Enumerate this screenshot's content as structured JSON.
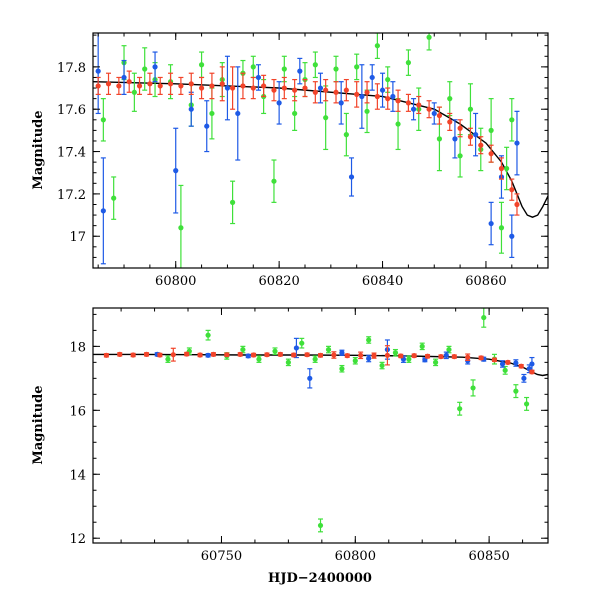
{
  "colors": {
    "series_blue": "#1e5ae6",
    "series_green": "#3fe03a",
    "series_red": "#f2442a",
    "model": "#000000"
  },
  "chart_data": [
    {
      "type": "scatter",
      "panel": "top",
      "title": "",
      "xlabel": "",
      "ylabel": "Magnitude",
      "xlim": [
        60784,
        60872
      ],
      "ylim": [
        17.96,
        16.85
      ],
      "y_inverted": true,
      "xticks": [
        60800,
        60820,
        60840,
        60860
      ],
      "yticks": [
        17,
        17.2,
        17.4,
        17.6,
        17.8
      ],
      "xtick_labels": [
        "60800",
        "60820",
        "60840",
        "60860"
      ],
      "ytick_labels": [
        "17",
        "17.2",
        "17.4",
        "17.6",
        "17.8"
      ],
      "model_curve": {
        "x": [
          60784,
          60800,
          60820,
          60840,
          60850,
          60855,
          60860,
          60863,
          60865,
          60866,
          60867,
          60868,
          60869,
          60870,
          60871,
          60872
        ],
        "y": [
          17.73,
          17.72,
          17.7,
          17.66,
          17.6,
          17.53,
          17.44,
          17.35,
          17.26,
          17.2,
          17.14,
          17.1,
          17.09,
          17.1,
          17.14,
          17.19
        ]
      },
      "series": [
        {
          "color": "#f2442a",
          "x": [
            60785,
            60787,
            60789,
            60791,
            60793,
            60795,
            60797,
            60799,
            60801,
            60803,
            60805,
            60807,
            60809,
            60811,
            60813,
            60815,
            60817,
            60819,
            60821,
            60823,
            60825,
            60827,
            60829,
            60831,
            60833,
            60835,
            60837,
            60839,
            60841,
            60843,
            60845,
            60847,
            60849,
            60851,
            60853,
            60855,
            60857,
            60859,
            60861,
            60863,
            60865,
            60866
          ],
          "y": [
            17.71,
            17.72,
            17.71,
            17.73,
            17.71,
            17.72,
            17.71,
            17.72,
            17.71,
            17.72,
            17.7,
            17.71,
            17.72,
            17.7,
            17.71,
            17.7,
            17.71,
            17.69,
            17.7,
            17.69,
            17.7,
            17.68,
            17.69,
            17.68,
            17.69,
            17.67,
            17.68,
            17.66,
            17.65,
            17.64,
            17.63,
            17.62,
            17.6,
            17.57,
            17.54,
            17.51,
            17.47,
            17.43,
            17.39,
            17.32,
            17.22,
            17.15
          ],
          "err": [
            0.04,
            0.05,
            0.04,
            0.05,
            0.04,
            0.05,
            0.04,
            0.05,
            0.04,
            0.05,
            0.05,
            0.06,
            0.08,
            0.1,
            0.06,
            0.05,
            0.05,
            0.05,
            0.05,
            0.05,
            0.04,
            0.05,
            0.05,
            0.05,
            0.05,
            0.06,
            0.05,
            0.06,
            0.05,
            0.05,
            0.04,
            0.04,
            0.04,
            0.04,
            0.04,
            0.04,
            0.04,
            0.04,
            0.04,
            0.05,
            0.05,
            0.05
          ]
        },
        {
          "color": "#1e5ae6",
          "x": [
            60785,
            60786,
            60790,
            60796,
            60800,
            60803,
            60806,
            60810,
            60812,
            60816,
            60820,
            60824,
            60828,
            60832,
            60834,
            60836,
            60838,
            60840,
            60842,
            60846,
            60850,
            60854,
            60858,
            60861,
            60863,
            60865,
            60866
          ],
          "y": [
            17.78,
            17.12,
            17.75,
            17.8,
            17.31,
            17.6,
            17.52,
            17.7,
            17.58,
            17.75,
            17.63,
            17.78,
            17.7,
            17.63,
            17.28,
            17.66,
            17.75,
            17.69,
            17.66,
            17.6,
            17.58,
            17.46,
            17.48,
            17.06,
            17.28,
            17.0,
            17.44
          ],
          "err": [
            0.2,
            0.25,
            0.08,
            0.07,
            0.2,
            0.08,
            0.12,
            0.15,
            0.22,
            0.06,
            0.1,
            0.06,
            0.07,
            0.1,
            0.09,
            0.15,
            0.06,
            0.08,
            0.07,
            0.05,
            0.05,
            0.09,
            0.1,
            0.1,
            0.1,
            0.1,
            0.15
          ]
        },
        {
          "color": "#3fe03a",
          "x": [
            60786,
            60788,
            60790,
            60792,
            60794,
            60796,
            60799,
            60801,
            60803,
            60805,
            60807,
            60809,
            60811,
            60813,
            60815,
            60817,
            60819,
            60821,
            60823,
            60825,
            60827,
            60829,
            60831,
            60833,
            60835,
            60837,
            60839,
            60841,
            60843,
            60845,
            60847,
            60849,
            60851,
            60853,
            60855,
            60857,
            60859,
            60861,
            60863,
            60864,
            60865
          ],
          "y": [
            17.55,
            17.18,
            17.82,
            17.68,
            17.79,
            17.74,
            17.73,
            17.04,
            17.62,
            17.81,
            17.58,
            17.74,
            17.16,
            17.77,
            17.8,
            17.66,
            17.26,
            17.79,
            17.58,
            17.74,
            17.81,
            17.56,
            17.79,
            17.48,
            17.8,
            17.59,
            17.9,
            17.74,
            17.53,
            17.82,
            17.6,
            17.94,
            17.46,
            17.65,
            17.38,
            17.6,
            17.41,
            17.5,
            17.04,
            17.32,
            17.55
          ],
          "err": [
            0.1,
            0.1,
            0.08,
            0.09,
            0.1,
            0.08,
            0.08,
            0.2,
            0.1,
            0.06,
            0.12,
            0.08,
            0.1,
            0.06,
            0.05,
            0.08,
            0.1,
            0.06,
            0.08,
            0.08,
            0.06,
            0.15,
            0.06,
            0.1,
            0.06,
            0.1,
            0.06,
            0.06,
            0.12,
            0.06,
            0.1,
            0.06,
            0.15,
            0.08,
            0.1,
            0.12,
            0.1,
            0.15,
            0.12,
            0.1,
            0.1
          ]
        }
      ]
    },
    {
      "type": "scatter",
      "panel": "bottom",
      "title": "",
      "xlabel": "HJD−2400000",
      "ylabel": "Magnitude",
      "xlim": [
        60702,
        60872
      ],
      "ylim": [
        19.2,
        11.85
      ],
      "y_inverted": true,
      "xticks": [
        60750,
        60800,
        60850
      ],
      "yticks": [
        12,
        14,
        16,
        18
      ],
      "xtick_labels": [
        "60750",
        "60800",
        "60850"
      ],
      "ytick_labels": [
        "12",
        "14",
        "16",
        "18"
      ],
      "model_curve": {
        "x": [
          60702,
          60720,
          60740,
          60760,
          60780,
          60800,
          60820,
          60840,
          60850,
          60858,
          60863,
          60866,
          60868,
          60870,
          60872
        ],
        "y": [
          17.75,
          17.75,
          17.74,
          17.73,
          17.73,
          17.72,
          17.7,
          17.66,
          17.6,
          17.48,
          17.33,
          17.2,
          17.12,
          17.09,
          17.12
        ]
      },
      "series": [
        {
          "color": "#f2442a",
          "x": [
            60707,
            60712,
            60717,
            60722,
            60727,
            60732,
            60737,
            60742,
            60747,
            60752,
            60757,
            60762,
            60767,
            60772,
            60777,
            60782,
            60787,
            60792,
            60797,
            60802,
            60807,
            60812,
            60817,
            60822,
            60827,
            60832,
            60837,
            60842,
            60847,
            60852,
            60857,
            60862,
            60866
          ],
          "y": [
            17.72,
            17.75,
            17.73,
            17.75,
            17.73,
            17.74,
            17.76,
            17.73,
            17.75,
            17.74,
            17.75,
            17.73,
            17.74,
            17.75,
            17.73,
            17.74,
            17.72,
            17.73,
            17.71,
            17.72,
            17.71,
            17.72,
            17.7,
            17.71,
            17.69,
            17.68,
            17.68,
            17.66,
            17.64,
            17.58,
            17.5,
            17.38,
            17.2
          ],
          "err": [
            0.05,
            0.05,
            0.05,
            0.05,
            0.05,
            0.2,
            0.05,
            0.05,
            0.05,
            0.05,
            0.05,
            0.05,
            0.05,
            0.05,
            0.05,
            0.05,
            0.05,
            0.1,
            0.05,
            0.1,
            0.08,
            0.3,
            0.05,
            0.05,
            0.05,
            0.05,
            0.05,
            0.1,
            0.05,
            0.05,
            0.05,
            0.05,
            0.05
          ]
        },
        {
          "color": "#1e5ae6",
          "x": [
            60726,
            60745,
            60760,
            60778,
            60783,
            60795,
            60805,
            60812,
            60818,
            60826,
            60834,
            60842,
            60848,
            60855,
            60860,
            60863,
            60865,
            60866
          ],
          "y": [
            17.75,
            17.72,
            17.7,
            17.95,
            17.0,
            17.8,
            17.62,
            17.9,
            17.6,
            17.58,
            17.72,
            17.55,
            17.6,
            17.45,
            17.48,
            17.0,
            17.3,
            17.45
          ],
          "err": [
            0.05,
            0.05,
            0.05,
            0.3,
            0.3,
            0.08,
            0.1,
            0.3,
            0.1,
            0.06,
            0.1,
            0.1,
            0.06,
            0.1,
            0.1,
            0.12,
            0.12,
            0.2
          ]
        },
        {
          "color": "#3fe03a",
          "x": [
            60730,
            60738,
            60745,
            60752,
            60758,
            60764,
            60770,
            60775,
            60780,
            60785,
            60787,
            60790,
            60795,
            60800,
            60805,
            60810,
            60815,
            60820,
            60825,
            60830,
            60835,
            60839,
            60844,
            60848,
            60852,
            60856,
            60860,
            60864
          ],
          "y": [
            17.6,
            17.85,
            18.35,
            17.7,
            17.9,
            17.6,
            17.85,
            17.5,
            18.1,
            17.6,
            12.4,
            17.9,
            17.3,
            17.55,
            18.2,
            17.4,
            17.8,
            17.6,
            18.0,
            17.5,
            17.9,
            16.05,
            16.7,
            18.9,
            17.6,
            17.25,
            16.6,
            16.2
          ],
          "err": [
            0.1,
            0.1,
            0.15,
            0.1,
            0.1,
            0.1,
            0.1,
            0.1,
            0.15,
            0.1,
            0.2,
            0.1,
            0.1,
            0.1,
            0.1,
            0.1,
            0.1,
            0.1,
            0.1,
            0.1,
            0.1,
            0.2,
            0.25,
            0.3,
            0.15,
            0.12,
            0.2,
            0.2
          ]
        }
      ]
    }
  ]
}
